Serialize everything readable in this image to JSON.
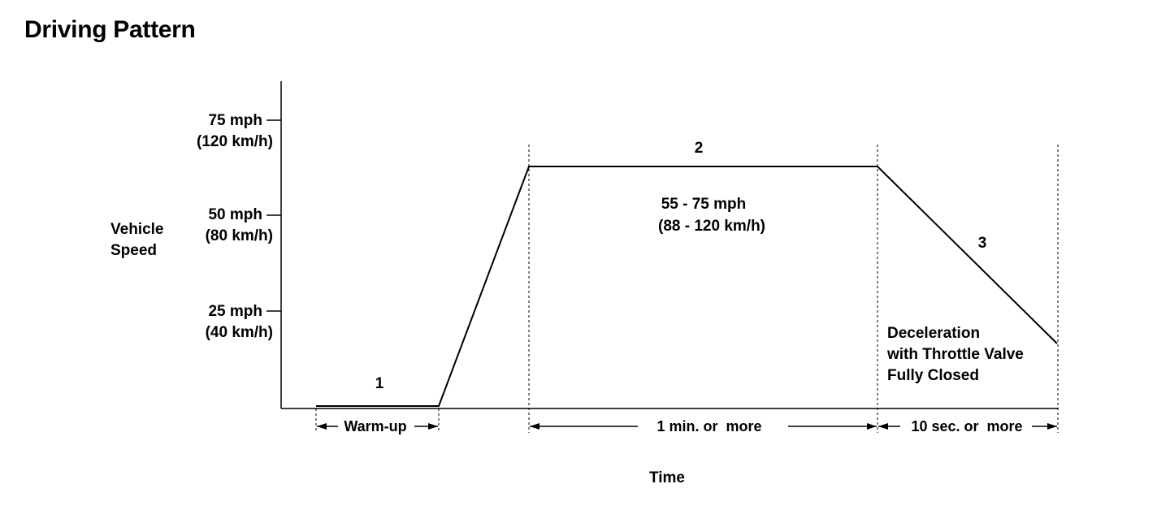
{
  "title": "Driving Pattern",
  "axes": {
    "y_label_line1": "Vehicle",
    "y_label_line2": "Speed",
    "x_label": "Time"
  },
  "y_ticks": [
    {
      "mph": "75 mph",
      "kmh": "(120 km/h)"
    },
    {
      "mph": "50 mph",
      "kmh": "(80 km/h)"
    },
    {
      "mph": "25 mph",
      "kmh": "(40 km/h)"
    }
  ],
  "phases": [
    {
      "number": "1",
      "duration": "Warm-up"
    },
    {
      "number": "2",
      "duration": "1 min. or  more",
      "speed_line1": "55 - 75 mph",
      "speed_line2": "(88 - 120 km/h)"
    },
    {
      "number": "3",
      "duration": "10 sec. or  more",
      "note_line1": "Deceleration",
      "note_line2": "with Throttle Valve",
      "note_line3": "Fully Closed"
    }
  ],
  "colors": {
    "line": "#000000",
    "background": "#ffffff"
  }
}
